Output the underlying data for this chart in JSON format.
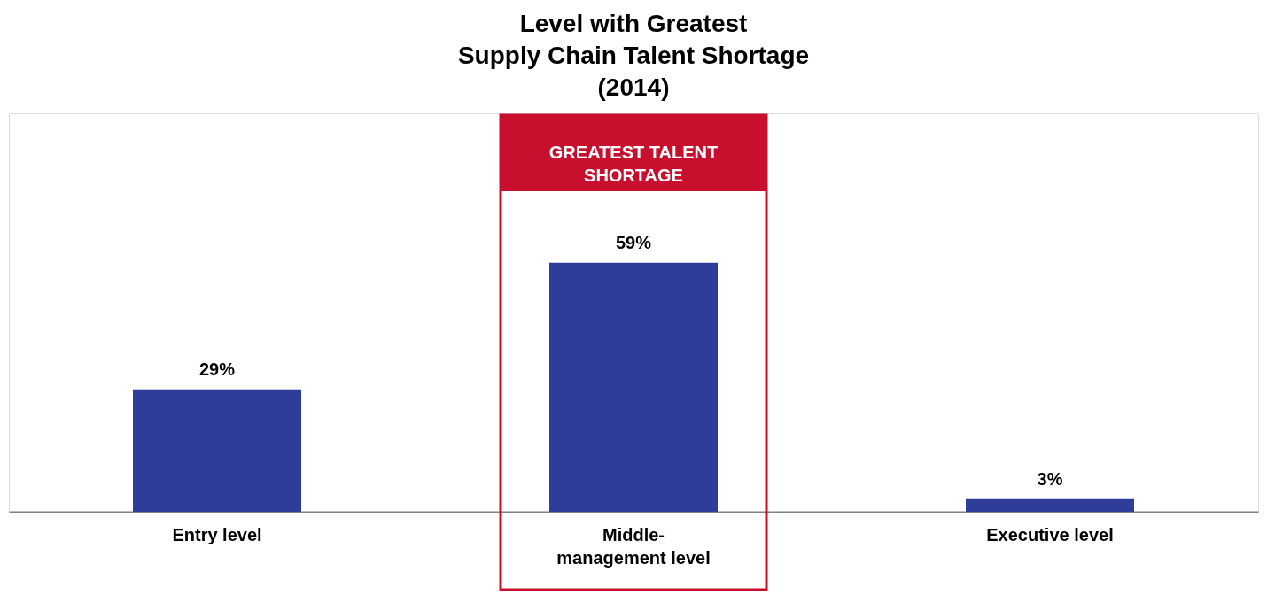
{
  "chart_data": {
    "type": "bar",
    "title": "Level with Greatest\nSupply Chain Talent Shortage\n(2014)",
    "categories": [
      "Entry level",
      "Middle-\nmanagement level",
      "Executive level"
    ],
    "values": [
      29,
      59,
      3
    ],
    "value_labels": [
      "29%",
      "59%",
      "3%"
    ],
    "color": "#2e3d98",
    "grid": false,
    "annotations": [
      "GREATEST TALENT\nSHORTAGE"
    ]
  }
}
